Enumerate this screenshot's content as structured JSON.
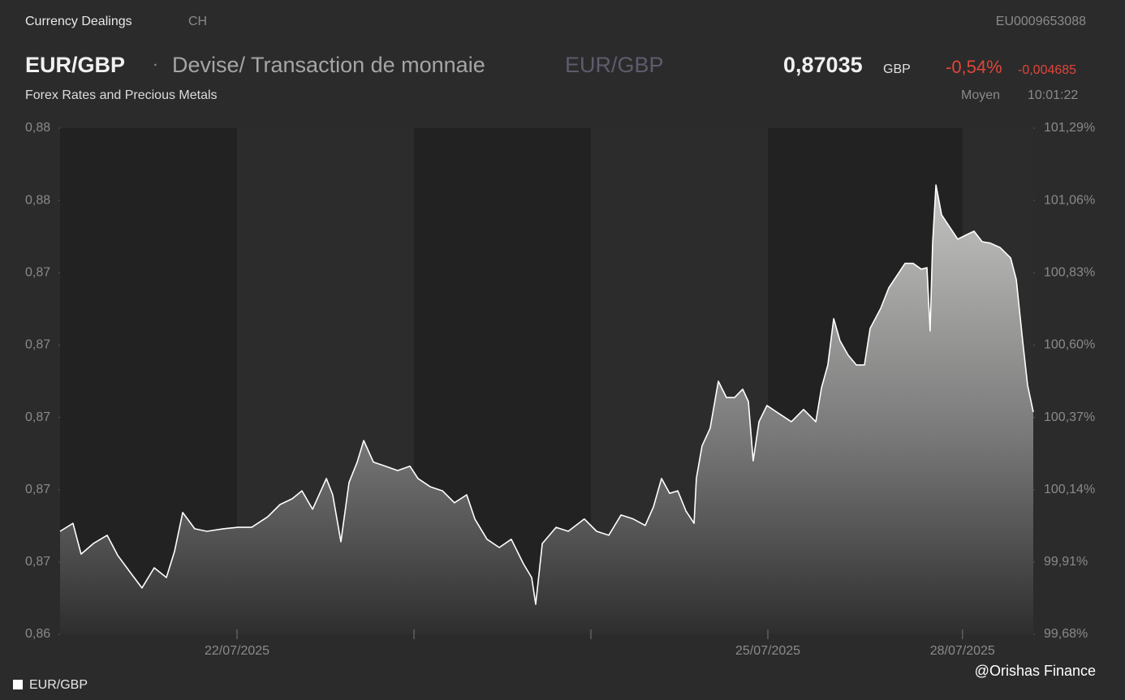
{
  "header": {
    "source": "Currency Dealings",
    "country": "CH",
    "isin": "EU0009653088",
    "symbol": "EUR/GBP",
    "separator": "·",
    "description": "Devise/ Transaction de monnaie",
    "symbol_alt": "EUR/GBP",
    "price": "0,87035",
    "currency": "GBP",
    "change_pct": "-0,54%",
    "change_abs": "-0,004685",
    "market": "Forex Rates and Precious Metals",
    "price_type": "Moyen",
    "time": "10:01:22"
  },
  "footer": {
    "watermark": "@Orishas Finance"
  },
  "chart_data": {
    "type": "area",
    "x": [
      0,
      0.073,
      0.119,
      0.188,
      0.266,
      0.326,
      0.394,
      0.463,
      0.532,
      0.601,
      0.647,
      0.693,
      0.761,
      0.83,
      0.922,
      1.005,
      1.083,
      1.174,
      1.243,
      1.312,
      1.367,
      1.427,
      1.505,
      1.541,
      1.587,
      1.633,
      1.679,
      1.716,
      1.771,
      1.839,
      1.908,
      1.977,
      2.023,
      2.092,
      2.161,
      2.229,
      2.298,
      2.344,
      2.413,
      2.482,
      2.55,
      2.619,
      2.665,
      2.688,
      2.725,
      2.803,
      2.872,
      2.963,
      3.032,
      3.101,
      3.17,
      3.239,
      3.307,
      3.353,
      3.399,
      3.445,
      3.491,
      3.537,
      3.583,
      3.596,
      3.628,
      3.674,
      3.72,
      3.766,
      3.812,
      3.858,
      3.89,
      3.917,
      3.95,
      3.995,
      4.064,
      4.133,
      4.202,
      4.271,
      4.303,
      4.339,
      4.372,
      4.408,
      4.454,
      4.5,
      4.546,
      4.578,
      4.638,
      4.683,
      4.729,
      4.775,
      4.821,
      4.867,
      4.899,
      4.917,
      4.931,
      4.95,
      4.982,
      5.028,
      5.073,
      5.119,
      5.165,
      5.211,
      5.257,
      5.312,
      5.372,
      5.404,
      5.44,
      5.468,
      5.5
    ],
    "series": [
      {
        "name": "EUR/GBP",
        "color": "#ffffff",
        "values": [
          0.86705,
          0.86727,
          0.86642,
          0.86671,
          0.86694,
          0.86638,
          0.86593,
          0.86548,
          0.86604,
          0.86577,
          0.86649,
          0.86757,
          0.86712,
          0.86705,
          0.86712,
          0.86716,
          0.86716,
          0.86745,
          0.86779,
          0.86795,
          0.86817,
          0.86766,
          0.86851,
          0.86806,
          0.86676,
          0.8684,
          0.86896,
          0.86956,
          0.86896,
          0.86885,
          0.86873,
          0.86885,
          0.86851,
          0.86828,
          0.86817,
          0.86784,
          0.86806,
          0.86739,
          0.86683,
          0.8666,
          0.86683,
          0.86615,
          0.86577,
          0.86503,
          0.86671,
          0.86716,
          0.86705,
          0.86739,
          0.86705,
          0.86694,
          0.8675,
          0.86739,
          0.86721,
          0.86772,
          0.86851,
          0.8681,
          0.86817,
          0.86761,
          0.86727,
          0.86851,
          0.86941,
          0.8699,
          0.8712,
          0.87075,
          0.87075,
          0.87098,
          0.87064,
          0.869,
          0.87008,
          0.87053,
          0.8703,
          0.87008,
          0.87042,
          0.87008,
          0.87102,
          0.87165,
          0.87293,
          0.87232,
          0.87192,
          0.87165,
          0.87165,
          0.87266,
          0.87322,
          0.87378,
          0.87412,
          0.87446,
          0.87446,
          0.8743,
          0.87434,
          0.87259,
          0.87502,
          0.87663,
          0.8758,
          0.87546,
          0.87513,
          0.87524,
          0.87535,
          0.87506,
          0.87502,
          0.8749,
          0.87461,
          0.87401,
          0.87232,
          0.87109,
          0.87035
        ]
      }
    ],
    "xlim": [
      0,
      5.5
    ],
    "xticks": [
      {
        "value": 1,
        "label": "22/07/2025"
      },
      {
        "value": 2,
        "label": null
      },
      {
        "value": 3,
        "label": null
      },
      {
        "value": 4,
        "label": "25/07/2025"
      },
      {
        "value": 5.1,
        "label": "28/07/2025"
      }
    ],
    "shaded_x": [
      [
        0,
        1
      ],
      [
        2,
        3
      ],
      [
        4,
        5.1
      ]
    ],
    "ylim": [
      0.8642,
      0.8782
    ],
    "yticks": [
      {
        "value": 0.8642,
        "label": "0,86"
      },
      {
        "value": 0.8662,
        "label": "0,87"
      },
      {
        "value": 0.8682,
        "label": "0,87"
      },
      {
        "value": 0.8702,
        "label": "0,87"
      },
      {
        "value": 0.8722,
        "label": "0,87"
      },
      {
        "value": 0.8742,
        "label": "0,87"
      },
      {
        "value": 0.8762,
        "label": "0,88"
      },
      {
        "value": 0.8782,
        "label": "0,88"
      }
    ],
    "y2lim": [
      99.68,
      101.29
    ],
    "y2ticks": [
      {
        "value": 99.68,
        "label": "99,68%"
      },
      {
        "value": 99.91,
        "label": "99,91%"
      },
      {
        "value": 100.14,
        "label": "100,14%"
      },
      {
        "value": 100.37,
        "label": "100,37%"
      },
      {
        "value": 100.6,
        "label": "100,60%"
      },
      {
        "value": 100.83,
        "label": "100,83%"
      },
      {
        "value": 101.06,
        "label": "101,06%"
      },
      {
        "value": 101.29,
        "label": "101,29%"
      }
    ]
  }
}
